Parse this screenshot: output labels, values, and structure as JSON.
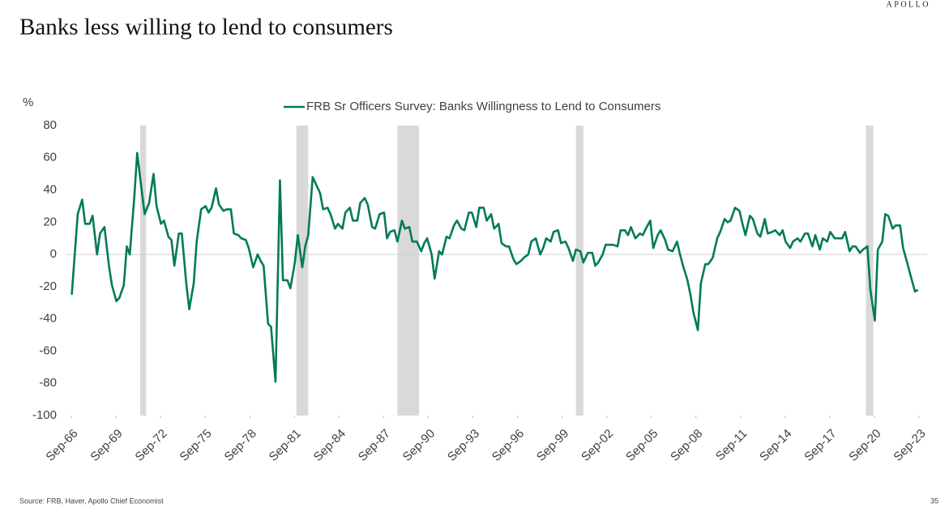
{
  "chart_data": {
    "type": "line",
    "title": "Banks less willing to lend to consumers",
    "brand": "APOLLO",
    "y_label": "%",
    "source": "Source: FRB, Haver, Apollo Chief Economist",
    "page_number": "35",
    "legend_position": "top",
    "zero_line": true,
    "shade_color": "#d9d9d9",
    "shaded_periods": [
      [
        1971.3,
        1971.7
      ],
      [
        1981.8,
        1982.6
      ],
      [
        1988.6,
        1990.05
      ],
      [
        2000.6,
        2001.1
      ],
      [
        2020.1,
        2020.6
      ]
    ],
    "xlim": [
      1966.67,
      2023.67
    ],
    "ylim": [
      -100,
      80
    ],
    "yticks": [
      -100,
      -80,
      -60,
      -40,
      -20,
      0,
      20,
      40,
      60,
      80
    ],
    "xticks": [
      {
        "value": 1966.67,
        "label": "Sep-66"
      },
      {
        "value": 1969.67,
        "label": "Sep-69"
      },
      {
        "value": 1972.67,
        "label": "Sep-72"
      },
      {
        "value": 1975.67,
        "label": "Sep-75"
      },
      {
        "value": 1978.67,
        "label": "Sep-78"
      },
      {
        "value": 1981.67,
        "label": "Sep-81"
      },
      {
        "value": 1984.67,
        "label": "Sep-84"
      },
      {
        "value": 1987.67,
        "label": "Sep-87"
      },
      {
        "value": 1990.67,
        "label": "Sep-90"
      },
      {
        "value": 1993.67,
        "label": "Sep-93"
      },
      {
        "value": 1996.67,
        "label": "Sep-96"
      },
      {
        "value": 1999.67,
        "label": "Sep-99"
      },
      {
        "value": 2002.67,
        "label": "Sep-02"
      },
      {
        "value": 2005.67,
        "label": "Sep-05"
      },
      {
        "value": 2008.67,
        "label": "Sep-08"
      },
      {
        "value": 2011.67,
        "label": "Sep-11"
      },
      {
        "value": 2014.67,
        "label": "Sep-14"
      },
      {
        "value": 2017.67,
        "label": "Sep-17"
      },
      {
        "value": 2020.67,
        "label": "Sep-20"
      },
      {
        "value": 2023.67,
        "label": "Sep-23"
      }
    ],
    "series": [
      {
        "name": "FRB Sr Officers Survey: Banks Willingness to Lend to Consumers",
        "color": "#007a5a",
        "x": [
          1966.7,
          1966.9,
          1967.1,
          1967.4,
          1967.6,
          1967.9,
          1968.1,
          1968.4,
          1968.6,
          1968.9,
          1969.2,
          1969.4,
          1969.7,
          1969.9,
          1970.2,
          1970.4,
          1970.6,
          1970.9,
          1971.1,
          1971.4,
          1971.6,
          1971.9,
          1972.2,
          1972.4,
          1972.7,
          1972.9,
          1973.2,
          1973.4,
          1973.6,
          1973.9,
          1974.1,
          1974.4,
          1974.6,
          1974.9,
          1975.1,
          1975.4,
          1975.7,
          1975.9,
          1976.1,
          1976.4,
          1976.6,
          1976.9,
          1977.1,
          1977.4,
          1977.6,
          1977.9,
          1978.1,
          1978.4,
          1978.6,
          1978.9,
          1979.2,
          1979.4,
          1979.6,
          1979.9,
          1980.1,
          1980.4,
          1980.7,
          1980.9,
          1981.2,
          1981.4,
          1981.7,
          1981.9,
          1982.2,
          1982.4,
          1982.6,
          1982.9,
          1983.1,
          1983.4,
          1983.6,
          1983.9,
          1984.1,
          1984.4,
          1984.6,
          1984.9,
          1985.1,
          1985.4,
          1985.6,
          1985.9,
          1986.1,
          1986.4,
          1986.6,
          1986.9,
          1987.1,
          1987.4,
          1987.7,
          1987.9,
          1988.1,
          1988.4,
          1988.6,
          1988.9,
          1989.1,
          1989.4,
          1989.6,
          1989.9,
          1990.2,
          1990.4,
          1990.6,
          1990.9,
          1991.1,
          1991.4,
          1991.6,
          1991.9,
          1992.1,
          1992.4,
          1992.6,
          1992.9,
          1993.1,
          1993.4,
          1993.6,
          1993.9,
          1994.1,
          1994.4,
          1994.6,
          1994.9,
          1995.1,
          1995.4,
          1995.6,
          1995.9,
          1996.1,
          1996.4,
          1996.6,
          1996.9,
          1997.1,
          1997.4,
          1997.6,
          1997.9,
          1998.2,
          1998.4,
          1998.6,
          1998.9,
          1999.1,
          1999.4,
          1999.6,
          1999.9,
          2000.1,
          2000.4,
          2000.6,
          2000.9,
          2001.1,
          2001.4,
          2001.7,
          2001.9,
          2002.1,
          2002.4,
          2002.6,
          2002.8,
          2003.1,
          2003.4,
          2003.6,
          2003.9,
          2004.1,
          2004.3,
          2004.6,
          2004.9,
          2005.1,
          2005.3,
          2005.6,
          2005.8,
          2006.1,
          2006.3,
          2006.6,
          2006.8,
          2007.1,
          2007.4,
          2007.6,
          2007.8,
          2008.1,
          2008.3,
          2008.5,
          2008.8,
          2009.0,
          2009.3,
          2009.5,
          2009.8,
          2010.1,
          2010.3,
          2010.6,
          2010.8,
          2011.0,
          2011.3,
          2011.6,
          2011.8,
          2012.0,
          2012.3,
          2012.5,
          2012.8,
          2013.0,
          2013.3,
          2013.5,
          2013.8,
          2014.0,
          2014.3,
          2014.5,
          2014.7,
          2015.0,
          2015.2,
          2015.5,
          2015.7,
          2016.0,
          2016.2,
          2016.5,
          2016.7,
          2017.0,
          2017.2,
          2017.5,
          2017.7,
          2018.0,
          2018.2,
          2018.5,
          2018.7,
          2019.0,
          2019.2,
          2019.4,
          2019.7,
          2019.9,
          2020.2,
          2020.4,
          2020.7,
          2020.9,
          2021.2,
          2021.4,
          2021.6,
          2021.9,
          2022.1,
          2022.4,
          2022.6,
          2022.9,
          2023.1,
          2023.4,
          2023.6
        ],
        "values": [
          -25,
          0,
          25,
          34,
          19,
          19,
          24,
          0,
          13,
          17,
          -7,
          -19,
          -29,
          -27,
          -19,
          5,
          0,
          35,
          63,
          40,
          25,
          32,
          50,
          30,
          19,
          21,
          11,
          9,
          -7,
          13,
          13,
          -18,
          -34,
          -18,
          8,
          28,
          30,
          26,
          29,
          41,
          31,
          27,
          28,
          28,
          13,
          12,
          10,
          9,
          4,
          -8,
          0,
          -4,
          -7,
          -43,
          -45,
          -79,
          46,
          -16,
          -16,
          -21,
          -5,
          12,
          -8,
          5,
          12,
          48,
          44,
          38,
          28,
          29,
          25,
          16,
          19,
          16,
          26,
          29,
          21,
          21,
          32,
          35,
          31,
          17,
          16,
          25,
          26,
          10,
          14,
          15,
          8,
          21,
          16,
          17,
          8,
          8,
          2,
          7,
          10,
          0,
          -15,
          2,
          0,
          11,
          10,
          18,
          21,
          16,
          15,
          26,
          26,
          17,
          29,
          29,
          21,
          25,
          16,
          19,
          7,
          5,
          5,
          -3,
          -6,
          -4,
          -2,
          0,
          8,
          10,
          0,
          4,
          10,
          8,
          14,
          15,
          7,
          8,
          4,
          -4,
          3,
          2,
          -5,
          1,
          1,
          -7,
          -5,
          0,
          6,
          6,
          6,
          5,
          15,
          15,
          12,
          17,
          10,
          13,
          12,
          16,
          21,
          4,
          12,
          15,
          9,
          3,
          2,
          8,
          0,
          -7,
          -16,
          -25,
          -36,
          -47,
          -18,
          -6,
          -6,
          -2,
          10,
          14,
          22,
          20,
          21,
          29,
          27,
          19,
          12,
          24,
          22,
          13,
          11,
          22,
          13,
          14,
          15,
          12,
          15,
          8,
          4,
          8,
          10,
          8,
          13,
          13,
          5,
          12,
          3,
          10,
          8,
          14,
          10,
          10,
          10,
          14,
          2,
          5,
          5,
          1,
          3,
          5,
          -22,
          -41,
          3,
          8,
          25,
          24,
          16,
          18,
          18,
          4,
          -6,
          -13,
          -23,
          -22
        ]
      }
    ]
  }
}
